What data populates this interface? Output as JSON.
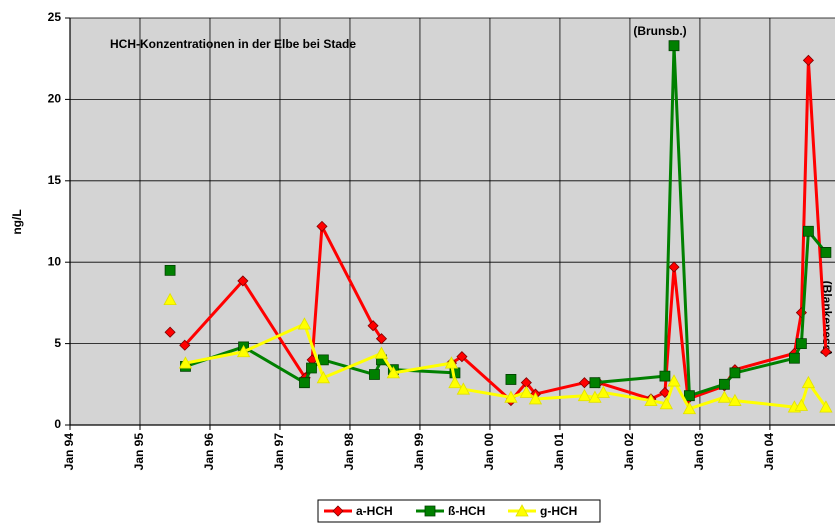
{
  "chart_data": {
    "type": "line",
    "y_label": "ng/L",
    "annotations": [
      "HCH-Konzentrationen in der Elbe  bei Stade",
      "(Brunsb.)",
      "(Blankenese)"
    ],
    "xlim": [
      1994,
      2004.93
    ],
    "xticks": [
      {
        "value": 1994,
        "label": "Jan 94"
      },
      {
        "value": 1995,
        "label": "Jan 95"
      },
      {
        "value": 1996,
        "label": "Jan 96"
      },
      {
        "value": 1997,
        "label": "Jan 97"
      },
      {
        "value": 1998,
        "label": "Jan 98"
      },
      {
        "value": 1999,
        "label": "Jan 99"
      },
      {
        "value": 2000,
        "label": "Jan 00"
      },
      {
        "value": 2001,
        "label": "Jan 01"
      },
      {
        "value": 2002,
        "label": "Jan 02"
      },
      {
        "value": 2003,
        "label": "Jan 03"
      },
      {
        "value": 2004,
        "label": "Jan 04"
      }
    ],
    "ylim": [
      0,
      25
    ],
    "yticks": [
      0,
      5,
      10,
      15,
      20,
      25
    ],
    "grid": true,
    "legend": "bottom",
    "series": [
      {
        "name": "a-HCH",
        "color": "#ff0000",
        "marker": "diamond",
        "x": [
          1995.43,
          null,
          1995.64,
          1996.47,
          1997.36,
          1997.46,
          1997.6,
          1998.33,
          1998.45,
          null,
          1999.45,
          1999.6,
          2000.3,
          2000.52,
          2000.65,
          2001.35,
          2001.55,
          2002.3,
          2002.5,
          2002.63,
          2002.83,
          2003.35,
          2003.5,
          2004.35,
          2004.45,
          2004.55,
          2004.8
        ],
        "values": [
          5.7,
          null,
          4.9,
          8.85,
          2.9,
          4.0,
          12.2,
          6.1,
          5.3,
          null,
          3.8,
          4.2,
          1.5,
          2.6,
          1.9,
          2.6,
          2.6,
          1.6,
          2.0,
          9.7,
          1.6,
          2.4,
          3.4,
          4.4,
          6.9,
          22.4,
          4.5
        ]
      },
      {
        "name": "ß-HCH",
        "color": "#008000",
        "marker": "square",
        "x": [
          1995.43,
          null,
          1995.65,
          1996.48,
          1997.35,
          1997.45,
          1997.62,
          1998.35,
          1998.45,
          1998.62,
          1999.5,
          null,
          2000.3,
          null,
          2001.5,
          2002.5,
          2002.63,
          2002.85,
          2003.35,
          2003.5,
          2004.35,
          2004.45,
          2004.55,
          2004.8
        ],
        "values": [
          9.5,
          null,
          3.6,
          4.8,
          2.6,
          3.5,
          4.0,
          3.1,
          4.0,
          3.4,
          3.2,
          null,
          2.8,
          null,
          2.6,
          3.0,
          23.3,
          1.8,
          2.5,
          3.2,
          4.1,
          5.0,
          11.9,
          10.6
        ]
      },
      {
        "name": "g-HCH",
        "color": "#ffff00",
        "marker": "triangle",
        "x": [
          1995.43,
          null,
          1995.65,
          1996.48,
          1997.35,
          1997.62,
          1998.45,
          1998.62,
          1999.45,
          1999.5,
          1999.62,
          2000.3,
          2000.52,
          2000.65,
          2001.35,
          2001.5,
          2001.62,
          2002.3,
          2002.52,
          2002.63,
          2002.85,
          2003.35,
          2003.5,
          2004.35,
          2004.45,
          2004.55,
          2004.8
        ],
        "values": [
          7.7,
          null,
          3.8,
          4.5,
          6.2,
          2.9,
          4.4,
          3.2,
          3.8,
          2.6,
          2.2,
          1.7,
          2.0,
          1.6,
          1.8,
          1.7,
          2.0,
          1.5,
          1.3,
          2.7,
          1.0,
          1.7,
          1.5,
          1.1,
          1.2,
          2.6,
          1.1
        ]
      }
    ]
  }
}
